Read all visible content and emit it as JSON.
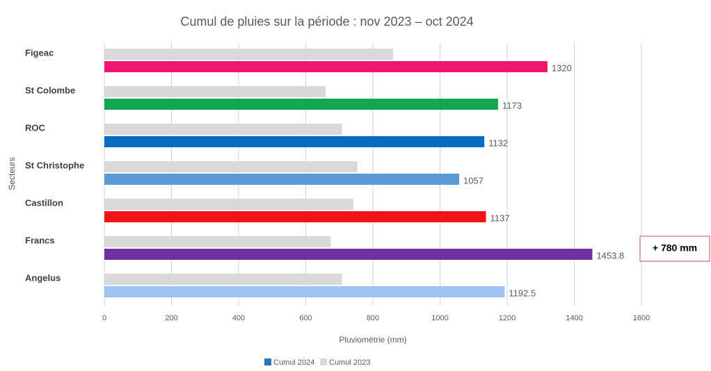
{
  "chart_data": {
    "type": "bar",
    "orientation": "horizontal",
    "title": "Cumul de pluies sur la période : nov 2023 – oct 2024",
    "x_label": "Pluviométrie (mm)",
    "y_label": "Secteurs",
    "categories": [
      "Figeac",
      "St Colombe",
      "ROC",
      "St Christophe",
      "Castillon",
      "Francs",
      "Angelus"
    ],
    "series": [
      {
        "name": "Cumul 2023",
        "color": "#d9d9d9",
        "values": [
          860,
          659,
          708,
          754,
          742,
          674,
          708
        ]
      },
      {
        "name": "Cumul 2024",
        "color": "#2e75b6",
        "colors": [
          "#f0146e",
          "#13a84f",
          "#0a6cc0",
          "#5b9bd5",
          "#f01414",
          "#7030a0",
          "#9dc3f0"
        ],
        "values": [
          1320,
          1173,
          1132,
          1057,
          1137,
          1453.8,
          1192.5
        ]
      }
    ],
    "xlim": [
      0,
      1600
    ],
    "xticks": [
      0,
      200,
      400,
      600,
      800,
      1000,
      1200,
      1400,
      1600
    ],
    "grid": true,
    "annotation": "+ 780 mm",
    "legend": "bottom"
  }
}
